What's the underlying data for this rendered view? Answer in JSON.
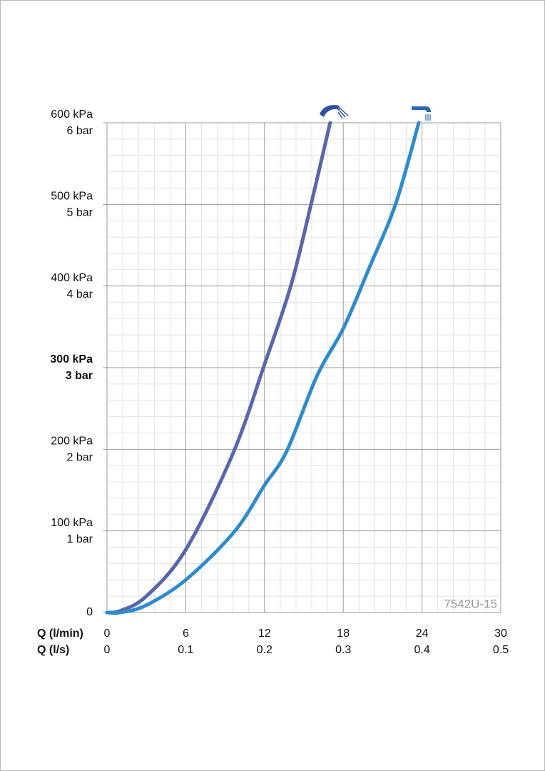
{
  "chart_data": {
    "type": "line",
    "x_axis_label": "Q (l/min)",
    "x2_axis_label": "Q (l/s)",
    "xlim": [
      0,
      30
    ],
    "xticks": [
      0,
      6,
      12,
      18,
      24,
      30
    ],
    "x2lim": [
      0,
      0.5
    ],
    "x2ticks": [
      0,
      0.1,
      0.2,
      0.3,
      0.4,
      0.5
    ],
    "ylim": [
      0,
      600
    ],
    "yticks": [
      0,
      {
        "value": 100,
        "label": "100 kPa"
      },
      {
        "value": 200,
        "label": "200 kPa"
      },
      {
        "value": 300,
        "label": "300 kPa"
      },
      {
        "value": 400,
        "label": "400 kPa"
      },
      {
        "value": 500,
        "label": "500 kPa"
      },
      {
        "value": 600,
        "label": "600 kPa"
      }
    ],
    "y_secondary_labels": [
      null,
      "1 bar",
      "2 bar",
      "3 bar",
      "4 bar",
      "5 bar",
      "6 bar"
    ],
    "bold_tick_value": 300,
    "grid": true,
    "minor_grid_divisions": 5,
    "watermark": "7542U-15",
    "series": [
      {
        "color": "#5767a8",
        "x": [
          0,
          1,
          3,
          6,
          9.6,
          12,
          14,
          15.5,
          17
        ],
        "values": [
          0,
          2,
          20,
          77,
          195,
          304,
          400,
          497,
          600
        ]
      },
      {
        "color": "#2f8bcb",
        "x": [
          0,
          1,
          3,
          6,
          9.7,
          12,
          13.7,
          16,
          18,
          20,
          22,
          23.75
        ],
        "values": [
          0,
          0,
          9,
          40,
          99,
          156,
          198,
          290,
          348,
          423,
          501,
          600
        ]
      }
    ]
  }
}
